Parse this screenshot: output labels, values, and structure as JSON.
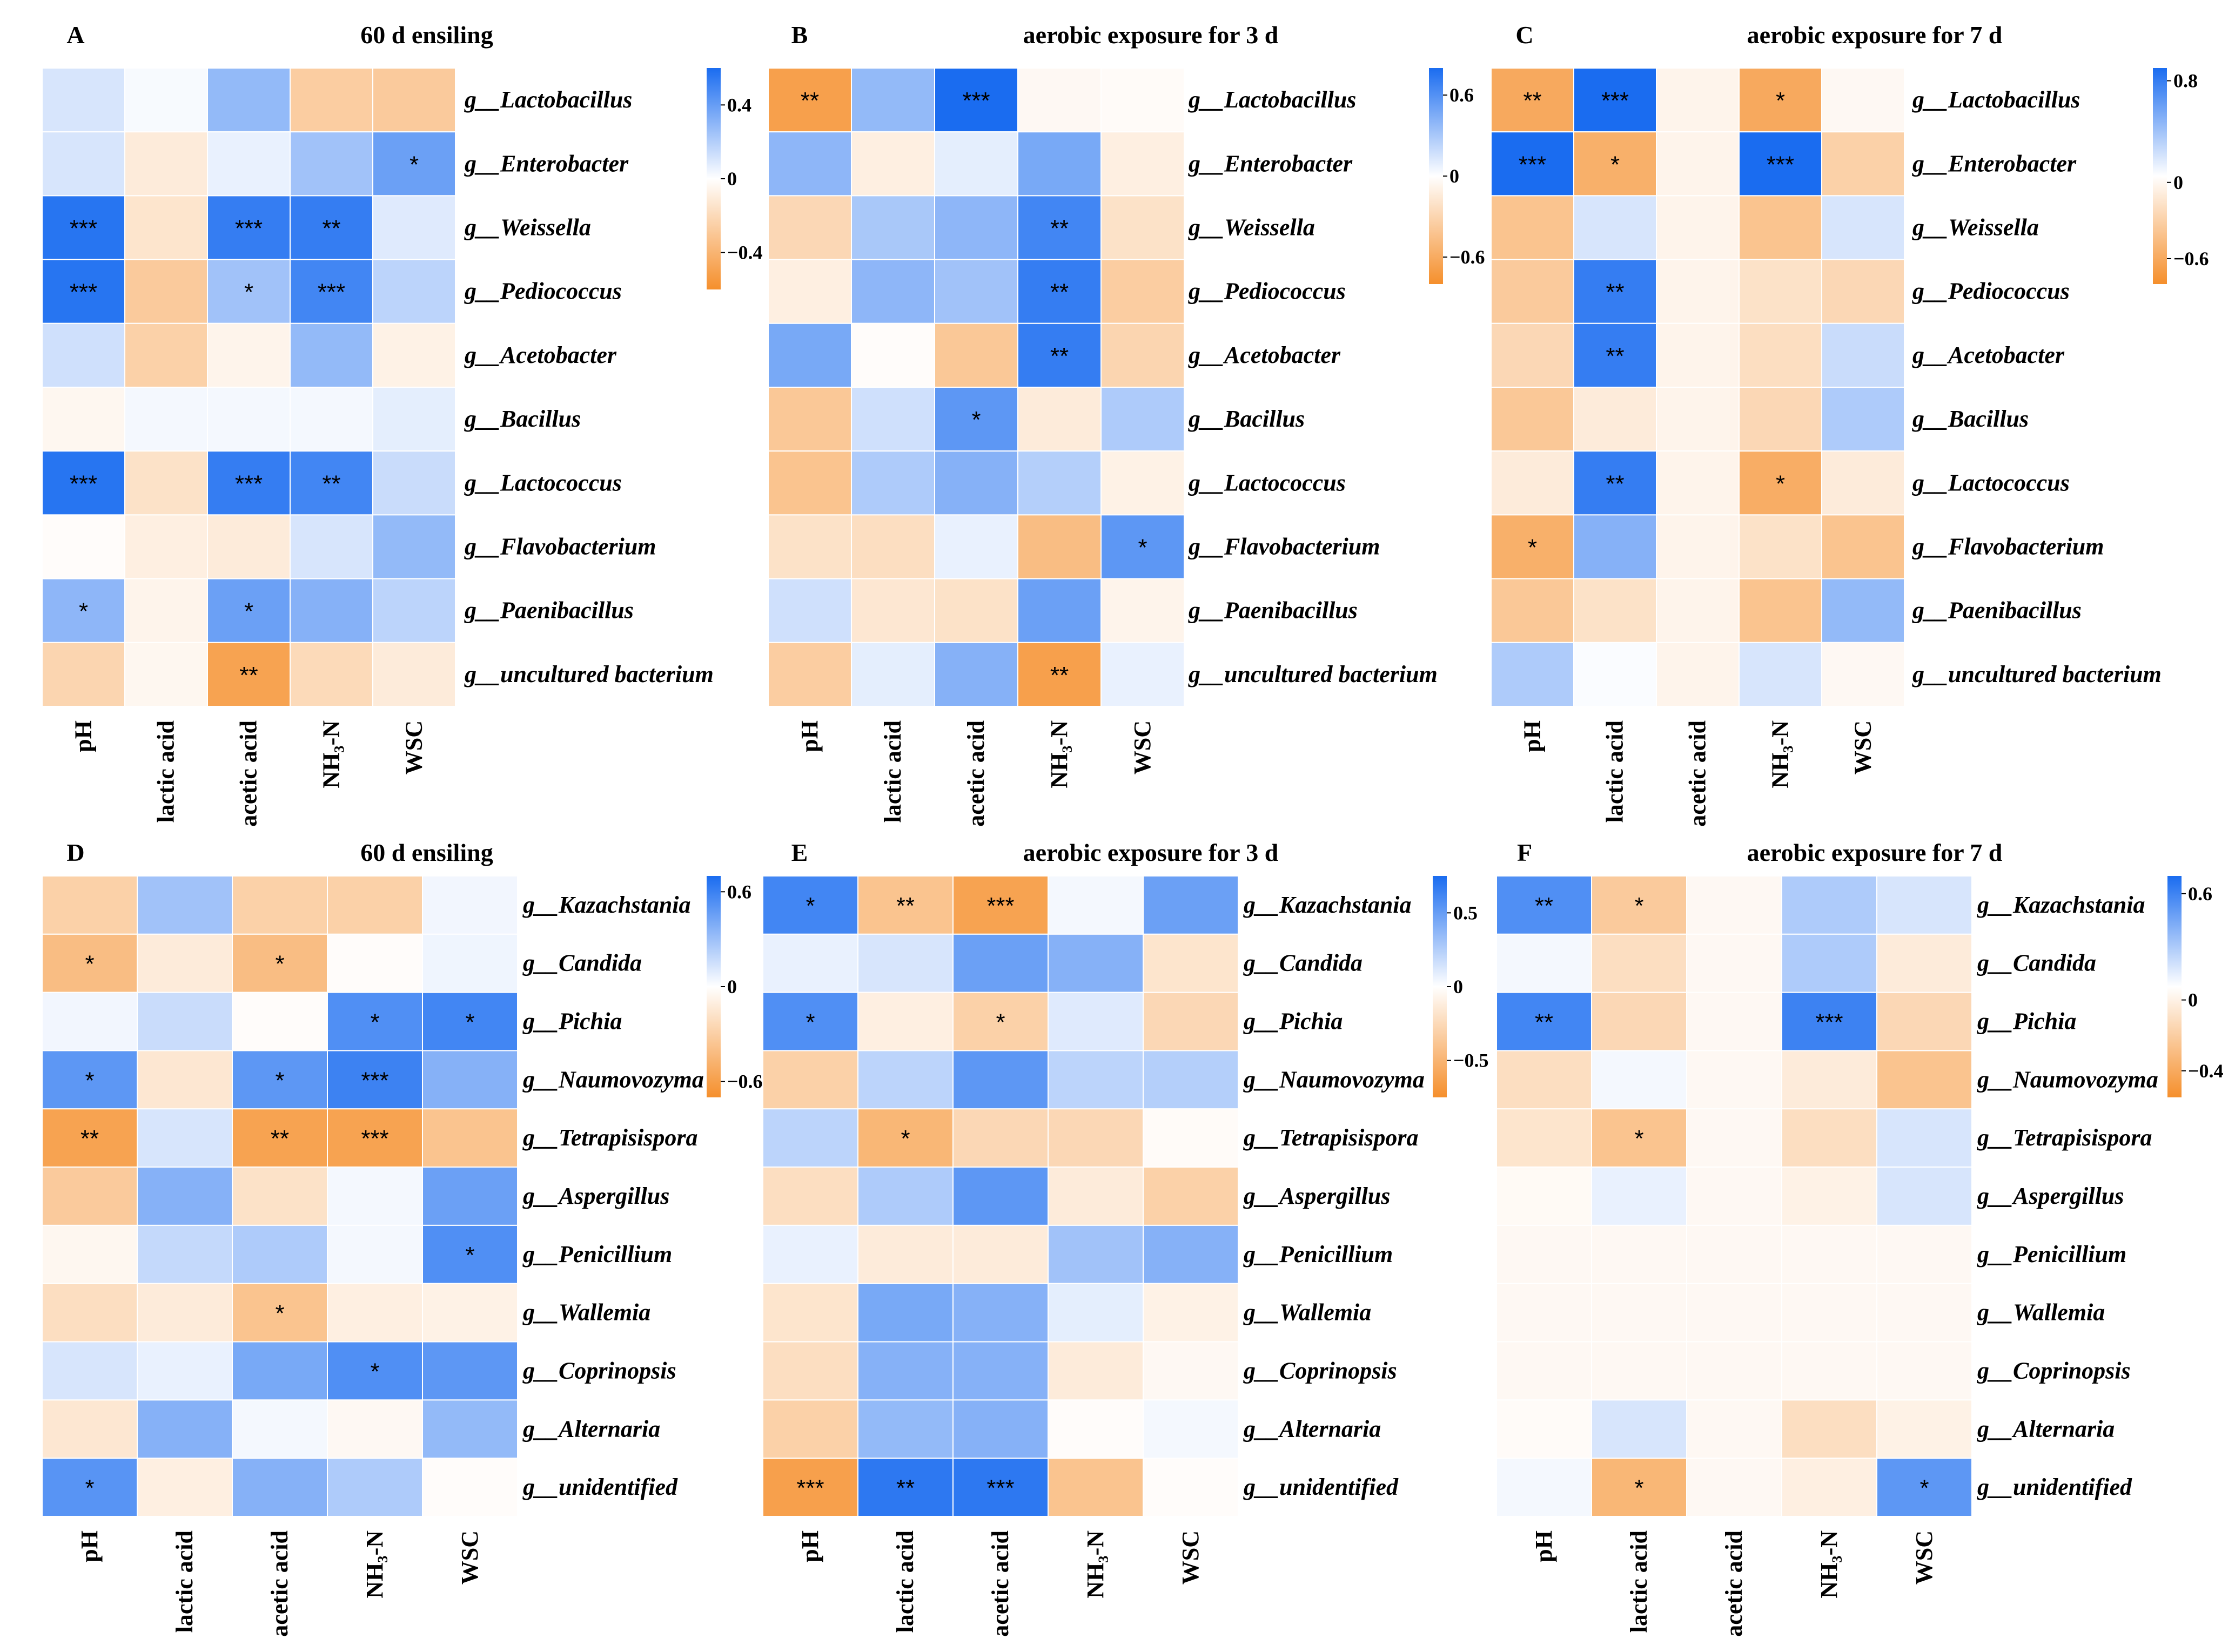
{
  "figure": {
    "colors": {
      "positive": "#1a6cf0",
      "neutral": "#ffffff",
      "negative": "#f58f2c"
    },
    "bacteria_rows": [
      "g__Lactobacillus",
      "g__Enterobacter",
      "g__Weissella",
      "g__Pediococcus",
      "g__Acetobacter",
      "g__Bacillus",
      "g__Lactococcus",
      "g__Flavobacterium",
      "g__Paenibacillus",
      "g__uncultured bacterium"
    ],
    "fungi_rows": [
      "g__Kazachstania",
      "g__Candida",
      "g__Pichia",
      "g__Naumovozyma",
      "g__Tetrapisispora",
      "g__Aspergillus",
      "g__Penicillium",
      "g__Wallemia",
      "g__Coprinopsis",
      "g__Alternaria",
      "g__unidentified"
    ]
  },
  "chart_data": [
    {
      "panel": "A",
      "title": "60 d ensiling",
      "type": "heatmap",
      "rows": [
        "g__Lactobacillus",
        "g__Enterobacter",
        "g__Weissella",
        "g__Pediococcus",
        "g__Acetobacter",
        "g__Bacillus",
        "g__Lactococcus",
        "g__Flavobacterium",
        "g__Paenibacillus",
        "g__uncultured bacterium"
      ],
      "columns": [
        "pH",
        "lactic acid",
        "acetic acid",
        "NH₃-N",
        "WSC"
      ],
      "values": [
        [
          0.15,
          0.03,
          0.4,
          -0.38,
          -0.4
        ],
        [
          0.15,
          -0.15,
          0.08,
          0.35,
          0.55
        ],
        [
          0.8,
          -0.2,
          0.75,
          0.75,
          0.12
        ],
        [
          0.8,
          -0.4,
          0.35,
          0.7,
          0.25
        ],
        [
          0.18,
          -0.35,
          -0.08,
          0.4,
          -0.1
        ],
        [
          -0.06,
          0.04,
          0.04,
          0.04,
          0.1
        ],
        [
          0.8,
          -0.22,
          0.75,
          0.7,
          0.2
        ],
        [
          -0.02,
          -0.12,
          -0.15,
          0.15,
          0.4
        ],
        [
          0.42,
          -0.08,
          0.55,
          0.45,
          0.25
        ],
        [
          -0.32,
          -0.06,
          -0.7,
          -0.28,
          -0.15
        ]
      ],
      "significance": [
        [
          "",
          "",
          "",
          "",
          ""
        ],
        [
          "",
          "",
          "",
          "",
          "*"
        ],
        [
          "***",
          "",
          "***",
          "**",
          ""
        ],
        [
          "***",
          "",
          "*",
          "***",
          ""
        ],
        [
          "",
          "",
          "",
          "",
          ""
        ],
        [
          "",
          "",
          "",
          "",
          ""
        ],
        [
          "***",
          "",
          "***",
          "**",
          ""
        ],
        [
          "",
          "",
          "",
          "",
          ""
        ],
        [
          "*",
          "",
          "*",
          "",
          ""
        ],
        [
          "",
          "",
          "**",
          "",
          ""
        ]
      ],
      "colorbar": {
        "min": -0.6,
        "max": 0.6,
        "ticks": [
          0.4,
          0,
          -0.4
        ],
        "tick_labels": [
          "0.4",
          "0",
          "−0.4"
        ]
      }
    },
    {
      "panel": "B",
      "title": "aerobic exposure for 3 d",
      "type": "heatmap",
      "rows": [
        "g__Lactobacillus",
        "g__Enterobacter",
        "g__Weissella",
        "g__Pediococcus",
        "g__Acetobacter",
        "g__Bacillus",
        "g__Lactococcus",
        "g__Flavobacterium",
        "g__Paenibacillus",
        "g__uncultured bacterium"
      ],
      "columns": [
        "pH",
        "lactic acid",
        "acetic acid",
        "NH₃-N",
        "WSC"
      ],
      "values": [
        [
          -0.72,
          0.4,
          0.85,
          -0.05,
          -0.03
        ],
        [
          0.42,
          -0.12,
          0.1,
          0.5,
          -0.12
        ],
        [
          -0.3,
          0.32,
          0.42,
          0.7,
          -0.22
        ],
        [
          -0.12,
          0.42,
          0.35,
          0.75,
          -0.38
        ],
        [
          0.5,
          -0.02,
          -0.42,
          0.75,
          -0.32
        ],
        [
          -0.42,
          0.18,
          0.6,
          -0.15,
          0.3
        ],
        [
          -0.45,
          0.3,
          0.45,
          0.28,
          -0.1
        ],
        [
          -0.22,
          -0.25,
          0.08,
          -0.5,
          0.6
        ],
        [
          0.18,
          -0.18,
          -0.22,
          0.55,
          -0.08
        ],
        [
          -0.38,
          0.1,
          0.45,
          -0.72,
          0.08
        ]
      ],
      "significance": [
        [
          "**",
          "",
          "***",
          "",
          ""
        ],
        [
          "",
          "",
          "",
          "",
          ""
        ],
        [
          "",
          "",
          "",
          "**",
          ""
        ],
        [
          "",
          "",
          "",
          "**",
          ""
        ],
        [
          "",
          "",
          "",
          "**",
          ""
        ],
        [
          "",
          "",
          "*",
          "",
          ""
        ],
        [
          "",
          "",
          "",
          "",
          ""
        ],
        [
          "",
          "",
          "",
          "",
          "*"
        ],
        [
          "",
          "",
          "",
          "",
          ""
        ],
        [
          "",
          "",
          "",
          "**",
          ""
        ]
      ],
      "colorbar": {
        "min": -0.8,
        "max": 0.8,
        "ticks": [
          0.6,
          0,
          -0.6
        ],
        "tick_labels": [
          "0.6",
          "0",
          "−0.6"
        ]
      }
    },
    {
      "panel": "C",
      "title": "aerobic exposure for 7 d",
      "type": "heatmap",
      "rows": [
        "g__Lactobacillus",
        "g__Enterobacter",
        "g__Weissella",
        "g__Pediococcus",
        "g__Acetobacter",
        "g__Bacillus",
        "g__Lactococcus",
        "g__Flavobacterium",
        "g__Paenibacillus",
        "g__uncultured bacterium"
      ],
      "columns": [
        "pH",
        "lactic acid",
        "acetic acid",
        "NH₃-N",
        "WSC"
      ],
      "values": [
        [
          -0.65,
          0.85,
          -0.08,
          -0.65,
          -0.05
        ],
        [
          0.88,
          -0.6,
          -0.08,
          0.88,
          -0.35
        ],
        [
          -0.45,
          0.15,
          -0.08,
          -0.45,
          0.15
        ],
        [
          -0.4,
          0.75,
          -0.08,
          -0.22,
          -0.3
        ],
        [
          -0.3,
          0.75,
          -0.08,
          -0.25,
          0.2
        ],
        [
          -0.42,
          -0.15,
          -0.08,
          -0.3,
          0.3
        ],
        [
          -0.15,
          0.75,
          -0.08,
          -0.62,
          -0.15
        ],
        [
          -0.6,
          0.45,
          -0.08,
          -0.22,
          -0.45
        ],
        [
          -0.42,
          -0.22,
          -0.08,
          -0.45,
          0.4
        ],
        [
          0.3,
          0.02,
          -0.08,
          0.15,
          -0.05
        ]
      ],
      "significance": [
        [
          "**",
          "***",
          "",
          "*",
          ""
        ],
        [
          "***",
          "*",
          "",
          "***",
          ""
        ],
        [
          "",
          "",
          "",
          "",
          ""
        ],
        [
          "",
          "**",
          "",
          "",
          ""
        ],
        [
          "",
          "**",
          "",
          "",
          ""
        ],
        [
          "",
          "",
          "",
          "",
          ""
        ],
        [
          "",
          "**",
          "",
          "*",
          ""
        ],
        [
          "*",
          "",
          "",
          "",
          ""
        ],
        [
          "",
          "",
          "",
          "",
          ""
        ],
        [
          "",
          "",
          "",
          "",
          ""
        ]
      ],
      "colorbar": {
        "min": -0.8,
        "max": 0.9,
        "ticks": [
          0.8,
          0,
          -0.6
        ],
        "tick_labels": [
          "0.8",
          "0",
          "−0.6"
        ]
      }
    },
    {
      "panel": "D",
      "title": "60 d ensiling",
      "type": "heatmap",
      "rows": [
        "g__Kazachstania",
        "g__Candida",
        "g__Pichia",
        "g__Naumovozyma",
        "g__Tetrapisispora",
        "g__Aspergillus",
        "g__Penicillium",
        "g__Wallemia",
        "g__Coprinopsis",
        "g__Alternaria",
        "g__unidentified"
      ],
      "columns": [
        "pH",
        "lactic acid",
        "acetic acid",
        "NH₃-N",
        "WSC"
      ],
      "values": [
        [
          -0.35,
          0.35,
          -0.35,
          -0.35,
          0.05
        ],
        [
          -0.5,
          -0.15,
          -0.5,
          -0.02,
          0.06
        ],
        [
          0.05,
          0.2,
          -0.02,
          0.65,
          0.7
        ],
        [
          0.6,
          -0.18,
          0.6,
          0.72,
          0.45
        ],
        [
          -0.7,
          0.15,
          -0.7,
          -0.7,
          -0.45
        ],
        [
          -0.4,
          0.45,
          -0.22,
          0.04,
          0.55
        ],
        [
          -0.06,
          0.22,
          0.3,
          0.04,
          0.65
        ],
        [
          -0.25,
          -0.15,
          -0.45,
          -0.12,
          -0.1
        ],
        [
          0.15,
          0.08,
          0.5,
          0.65,
          0.6
        ],
        [
          -0.18,
          0.45,
          0.04,
          -0.05,
          0.4
        ],
        [
          0.62,
          -0.12,
          0.45,
          0.3,
          -0.02
        ]
      ],
      "significance": [
        [
          "",
          "",
          "",
          "",
          ""
        ],
        [
          "*",
          "",
          "*",
          "",
          ""
        ],
        [
          "",
          "",
          "",
          "*",
          "*"
        ],
        [
          "*",
          "",
          "*",
          "***",
          ""
        ],
        [
          "**",
          "",
          "**",
          "***",
          ""
        ],
        [
          "",
          "",
          "",
          "",
          ""
        ],
        [
          "",
          "",
          "",
          "",
          "*"
        ],
        [
          "",
          "",
          "*",
          "",
          ""
        ],
        [
          "",
          "",
          "",
          "*",
          ""
        ],
        [
          "",
          "",
          "",
          "",
          ""
        ],
        [
          "*",
          "",
          "",
          "",
          ""
        ]
      ],
      "colorbar": {
        "min": -0.7,
        "max": 0.7,
        "ticks": [
          0.6,
          0,
          -0.6
        ],
        "tick_labels": [
          "0.6",
          "0",
          "−0.6"
        ]
      }
    },
    {
      "panel": "E",
      "title": "aerobic exposure for 3 d",
      "type": "heatmap",
      "rows": [
        "g__Kazachstania",
        "g__Candida",
        "g__Pichia",
        "g__Naumovozyma",
        "g__Tetrapisispora",
        "g__Aspergillus",
        "g__Penicillium",
        "g__Wallemia",
        "g__Coprinopsis",
        "g__Alternaria",
        "g__unidentified"
      ],
      "columns": [
        "pH",
        "lactic acid",
        "acetic acid",
        "NH₃-N",
        "WSC"
      ],
      "values": [
        [
          0.7,
          -0.45,
          -0.7,
          0.04,
          0.55
        ],
        [
          0.08,
          0.15,
          0.55,
          0.45,
          -0.2
        ],
        [
          0.65,
          -0.12,
          -0.35,
          0.12,
          -0.3
        ],
        [
          -0.35,
          0.25,
          0.6,
          0.25,
          0.28
        ],
        [
          0.25,
          -0.55,
          -0.3,
          -0.3,
          -0.03
        ],
        [
          -0.25,
          0.3,
          0.6,
          -0.15,
          -0.35
        ],
        [
          0.08,
          -0.15,
          -0.15,
          0.35,
          0.45
        ],
        [
          -0.2,
          0.5,
          0.45,
          0.1,
          -0.1
        ],
        [
          -0.25,
          0.45,
          0.45,
          -0.15,
          -0.05
        ],
        [
          -0.35,
          0.4,
          0.45,
          -0.02,
          0.04
        ],
        [
          -0.72,
          0.78,
          0.78,
          -0.45,
          -0.02
        ]
      ],
      "significance": [
        [
          "*",
          "**",
          "***",
          "",
          ""
        ],
        [
          "",
          "",
          "",
          "",
          ""
        ],
        [
          "*",
          "",
          "*",
          "",
          ""
        ],
        [
          "",
          "",
          "",
          "",
          ""
        ],
        [
          "",
          "*",
          "",
          "",
          ""
        ],
        [
          "",
          "",
          "",
          "",
          ""
        ],
        [
          "",
          "",
          "",
          "",
          ""
        ],
        [
          "",
          "",
          "",
          "",
          ""
        ],
        [
          "",
          "",
          "",
          "",
          ""
        ],
        [
          "",
          "",
          "",
          "",
          ""
        ],
        [
          "***",
          "**",
          "***",
          "",
          ""
        ]
      ],
      "colorbar": {
        "min": -0.75,
        "max": 0.75,
        "ticks": [
          0.5,
          0,
          -0.5
        ],
        "tick_labels": [
          "0.5",
          "0",
          "−0.5"
        ]
      }
    },
    {
      "panel": "F",
      "title": "aerobic exposure for 7 d",
      "type": "heatmap",
      "rows": [
        "g__Kazachstania",
        "g__Candida",
        "g__Pichia",
        "g__Naumovozyma",
        "g__Tetrapisispora",
        "g__Aspergillus",
        "g__Penicillium",
        "g__Wallemia",
        "g__Coprinopsis",
        "g__Alternaria",
        "g__unidentified"
      ],
      "columns": [
        "pH",
        "lactic acid",
        "acetic acid",
        "NH₃-N",
        "WSC"
      ],
      "values": [
        [
          0.65,
          -0.4,
          -0.05,
          0.3,
          0.15
        ],
        [
          0.04,
          -0.25,
          -0.05,
          0.3,
          -0.15
        ],
        [
          0.7,
          -0.3,
          -0.05,
          0.72,
          -0.3
        ],
        [
          -0.25,
          0.04,
          -0.05,
          -0.15,
          -0.45
        ],
        [
          -0.2,
          -0.45,
          -0.05,
          -0.25,
          0.15
        ],
        [
          -0.04,
          0.08,
          -0.05,
          -0.1,
          0.15
        ],
        [
          -0.05,
          -0.05,
          -0.05,
          -0.05,
          -0.05
        ],
        [
          -0.05,
          -0.05,
          -0.05,
          -0.05,
          -0.05
        ],
        [
          -0.05,
          -0.05,
          -0.05,
          -0.05,
          -0.05
        ],
        [
          -0.03,
          0.15,
          -0.05,
          -0.25,
          -0.1
        ],
        [
          0.04,
          -0.55,
          -0.05,
          -0.12,
          0.6
        ]
      ],
      "significance": [
        [
          "**",
          "*",
          "",
          "",
          ""
        ],
        [
          "",
          "",
          "",
          "",
          ""
        ],
        [
          "**",
          "",
          "",
          "***",
          ""
        ],
        [
          "",
          "",
          "",
          "",
          ""
        ],
        [
          "",
          "*",
          "",
          "",
          ""
        ],
        [
          "",
          "",
          "",
          "",
          ""
        ],
        [
          "",
          "",
          "",
          "",
          ""
        ],
        [
          "",
          "",
          "",
          "",
          ""
        ],
        [
          "",
          "",
          "",
          "",
          ""
        ],
        [
          "",
          "",
          "",
          "",
          ""
        ],
        [
          "",
          "*",
          "",
          "",
          "*"
        ]
      ],
      "colorbar": {
        "min": -0.55,
        "max": 0.7,
        "ticks": [
          0.6,
          0,
          -0.4
        ],
        "tick_labels": [
          "0.6",
          "0",
          "−0.4"
        ]
      }
    }
  ]
}
